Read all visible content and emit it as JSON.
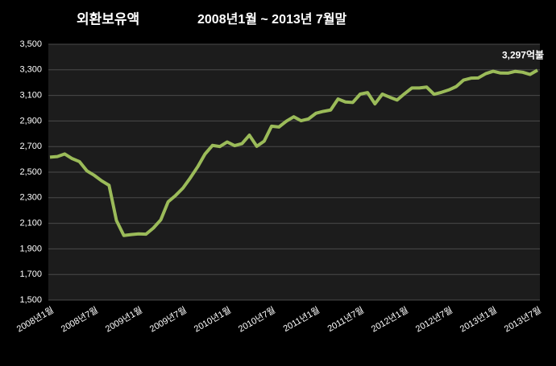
{
  "chart_data": {
    "type": "line",
    "title": "외환보유액",
    "subtitle": "2008년1월 ~ 2013년 7월말",
    "annotation": "3,297억불",
    "categories": [
      "2008년1월",
      null,
      null,
      null,
      null,
      null,
      "2008년7월",
      null,
      null,
      null,
      null,
      null,
      "2009년1월",
      null,
      null,
      null,
      null,
      null,
      "2009년7월",
      null,
      null,
      null,
      null,
      null,
      "2010년1월",
      null,
      null,
      null,
      null,
      null,
      "2010년7월",
      null,
      null,
      null,
      null,
      null,
      "2011년1월",
      null,
      null,
      null,
      null,
      null,
      "2011년7월",
      null,
      null,
      null,
      null,
      null,
      "2012년1월",
      null,
      null,
      null,
      null,
      null,
      "2012년7월",
      null,
      null,
      null,
      null,
      null,
      "2013년1월",
      null,
      null,
      null,
      null,
      null,
      "2013년7월"
    ],
    "series": [
      {
        "name": "외환보유액",
        "color": "#9bbb59",
        "values": [
          2617,
          2622,
          2642,
          2606,
          2582,
          2510,
          2475,
          2432,
          2397,
          2122,
          2005,
          2012,
          2017,
          2015,
          2063,
          2127,
          2268,
          2317,
          2375,
          2455,
          2542,
          2642,
          2709,
          2700,
          2736,
          2707,
          2723,
          2789,
          2702,
          2742,
          2859,
          2853,
          2898,
          2933,
          2902,
          2916,
          2960,
          2975,
          2986,
          3072,
          3049,
          3045,
          3110,
          3122,
          3034,
          3110,
          3086,
          3064,
          3113,
          3158,
          3158,
          3165,
          3109,
          3124,
          3143,
          3169,
          3220,
          3235,
          3237,
          3270,
          3289,
          3275,
          3274,
          3288,
          3281,
          3264,
          3297
        ]
      }
    ],
    "ylim": [
      1500,
      3500
    ],
    "yticks": [
      {
        "value": 1500,
        "label": "1,500"
      },
      {
        "value": 1700,
        "label": "1,700"
      },
      {
        "value": 1900,
        "label": "1,900"
      },
      {
        "value": 2100,
        "label": "2,100"
      },
      {
        "value": 2300,
        "label": "2,300"
      },
      {
        "value": 2500,
        "label": "2,500"
      },
      {
        "value": 2700,
        "label": "2,700"
      },
      {
        "value": 2900,
        "label": "2,900"
      },
      {
        "value": 3100,
        "label": "3,100"
      },
      {
        "value": 3300,
        "label": "3,300"
      },
      {
        "value": 3500,
        "label": "3,500"
      }
    ],
    "grid": true
  }
}
